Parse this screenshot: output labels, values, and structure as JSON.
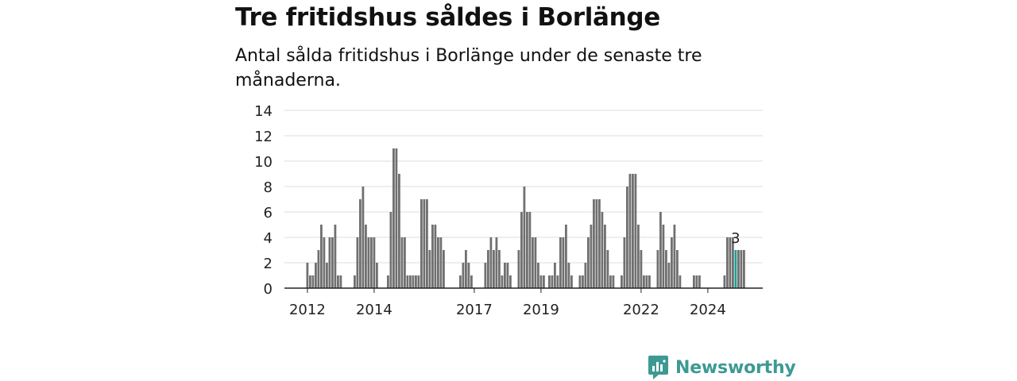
{
  "chart_data": {
    "type": "bar",
    "title": "Tre fritidshus såldes i Borlänge",
    "subtitle": "Antal sålda fritidshus i Borlänge under de senaste tre månaderna.",
    "xlabel": "",
    "ylabel": "",
    "ylim": [
      0,
      14
    ],
    "yticks": [
      0,
      2,
      4,
      6,
      8,
      10,
      12,
      14
    ],
    "grid": true,
    "x_start": "2012-01",
    "x_ticks": [
      {
        "label": "2012",
        "date": "2012-01"
      },
      {
        "label": "2014",
        "date": "2014-01"
      },
      {
        "label": "2017",
        "date": "2017-01"
      },
      {
        "label": "2019",
        "date": "2019-01"
      },
      {
        "label": "2022",
        "date": "2022-01"
      },
      {
        "label": "2024",
        "date": "2024-01"
      }
    ],
    "values": [
      2,
      1,
      1,
      2,
      3,
      5,
      4,
      2,
      4,
      4,
      5,
      1,
      1,
      0,
      0,
      0,
      0,
      1,
      4,
      7,
      8,
      5,
      4,
      4,
      4,
      2,
      0,
      0,
      0,
      1,
      6,
      11,
      11,
      9,
      4,
      4,
      1,
      1,
      1,
      1,
      1,
      7,
      7,
      7,
      3,
      5,
      5,
      4,
      4,
      3,
      0,
      0,
      0,
      0,
      0,
      1,
      2,
      3,
      2,
      1,
      0,
      0,
      0,
      0,
      2,
      3,
      4,
      3,
      4,
      3,
      1,
      2,
      2,
      1,
      0,
      0,
      3,
      6,
      8,
      6,
      6,
      4,
      4,
      2,
      1,
      1,
      0,
      1,
      1,
      2,
      1,
      4,
      4,
      5,
      2,
      1,
      0,
      0,
      1,
      1,
      2,
      4,
      5,
      7,
      7,
      7,
      6,
      5,
      3,
      1,
      1,
      0,
      0,
      1,
      4,
      8,
      9,
      9,
      9,
      5,
      3,
      1,
      1,
      1,
      0,
      0,
      3,
      6,
      5,
      3,
      2,
      4,
      5,
      3,
      1,
      0,
      0,
      0,
      0,
      1,
      1,
      1,
      0,
      0,
      0,
      0,
      0,
      0,
      0,
      0,
      1,
      4,
      4,
      4,
      3,
      3,
      3,
      3
    ],
    "highlight_index": 154,
    "highlight_label": "3",
    "colors": {
      "bar": "#707070",
      "highlight": "#1a9e94",
      "grid": "#dcdcdc",
      "axis": "#222222"
    }
  },
  "brand": {
    "name": "Newsworthy",
    "color": "#3d9a93"
  }
}
